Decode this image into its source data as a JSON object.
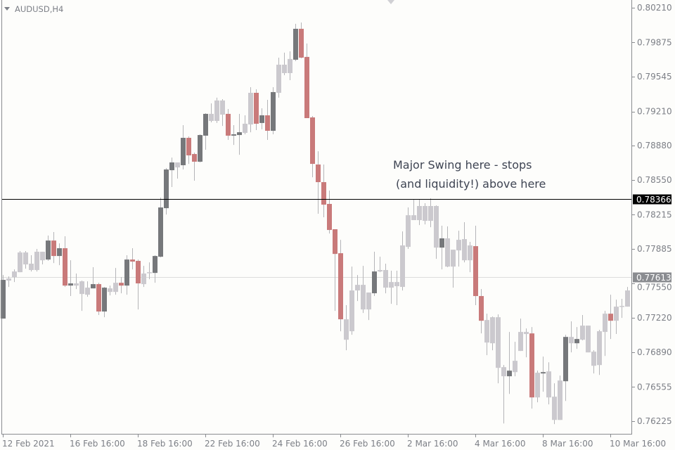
{
  "header": {
    "symbol_label": "AUDUSD,H4"
  },
  "annotation": {
    "line1": "Major Swing here - stops",
    "line2": "(and liquidity!) above here"
  },
  "colors": {
    "background": "#fdfdfb",
    "bull": "#76787b",
    "bear": "#c97a7a",
    "neutral": "#cbc9ce",
    "wick": "#b5b5b8",
    "level_line": "#000000",
    "price_line": "#dcdcdc"
  },
  "chart_data": {
    "type": "candlestick",
    "symbol": "AUDUSD",
    "timeframe": "H4",
    "ylim": [
      0.76225,
      0.8021
    ],
    "y_ticks": [
      "0.80210",
      "0.79875",
      "0.79545",
      "0.79210",
      "0.78880",
      "0.78550",
      "0.78215",
      "0.77885",
      "0.77550",
      "0.77220",
      "0.76890",
      "0.76555",
      "0.76225"
    ],
    "x_ticks": [
      {
        "label": "12 Feb 2021",
        "candle": 0
      },
      {
        "label": "16 Feb 16:00",
        "candle": 12
      },
      {
        "label": "18 Feb 16:00",
        "candle": 24
      },
      {
        "label": "22 Feb 16:00",
        "candle": 36
      },
      {
        "label": "24 Feb 16:00",
        "candle": 48
      },
      {
        "label": "26 Feb 16:00",
        "candle": 60
      },
      {
        "label": "2 Mar 16:00",
        "candle": 72
      },
      {
        "label": "4 Mar 16:00",
        "candle": 84
      },
      {
        "label": "8 Mar 16:00",
        "candle": 96
      },
      {
        "label": "10 Mar 16:00",
        "candle": 108
      }
    ],
    "horizontal_level": {
      "price": 0.78366,
      "label": "0.78366"
    },
    "current_price": {
      "price": 0.77613,
      "label": "0.77613"
    },
    "candle_fields": [
      "open",
      "high",
      "low",
      "close",
      "style"
    ],
    "candles": [
      [
        0.77214,
        0.77634,
        0.77214,
        0.77587,
        "bull"
      ],
      [
        0.7758,
        0.7762,
        0.77519,
        0.776,
        "neutral"
      ],
      [
        0.77614,
        0.77688,
        0.77566,
        0.77668,
        "neutral"
      ],
      [
        0.77661,
        0.77865,
        0.77661,
        0.77851,
        "neutral"
      ],
      [
        0.77851,
        0.77865,
        0.77695,
        0.77736,
        "neutral"
      ],
      [
        0.77743,
        0.77824,
        0.77668,
        0.77682,
        "neutral"
      ],
      [
        0.77682,
        0.77885,
        0.77668,
        0.77858,
        "neutral"
      ],
      [
        0.77858,
        0.77858,
        0.77736,
        0.77776,
        "neutral"
      ],
      [
        0.77783,
        0.78014,
        0.7777,
        0.77966,
        "bull"
      ],
      [
        0.77966,
        0.78048,
        0.77749,
        0.77817,
        "bear"
      ],
      [
        0.77817,
        0.77939,
        0.77729,
        0.77892,
        "bull"
      ],
      [
        0.77892,
        0.78007,
        0.77519,
        0.77532,
        "bear"
      ],
      [
        0.77532,
        0.77776,
        0.77431,
        0.77553,
        "bull"
      ],
      [
        0.77553,
        0.77648,
        0.77498,
        0.77532,
        "neutral"
      ],
      [
        0.77573,
        0.7758,
        0.77288,
        0.77451,
        "neutral"
      ],
      [
        0.77444,
        0.77573,
        0.77424,
        0.77512,
        "neutral"
      ],
      [
        0.77505,
        0.77709,
        0.77505,
        0.77546,
        "bull"
      ],
      [
        0.77546,
        0.77559,
        0.77248,
        0.77282,
        "bear"
      ],
      [
        0.77282,
        0.77519,
        0.77227,
        0.77512,
        "bull"
      ],
      [
        0.77505,
        0.77532,
        0.77437,
        0.77471,
        "neutral"
      ],
      [
        0.77471,
        0.77702,
        0.77444,
        0.77559,
        "neutral"
      ],
      [
        0.77559,
        0.77614,
        0.77458,
        0.77532,
        "bear"
      ],
      [
        0.77532,
        0.77824,
        0.77444,
        0.77783,
        "bull"
      ],
      [
        0.77783,
        0.77892,
        0.77688,
        0.77763,
        "bear"
      ],
      [
        0.7777,
        0.77783,
        0.77302,
        0.77553,
        "bear"
      ],
      [
        0.77546,
        0.77722,
        0.77519,
        0.77648,
        "neutral"
      ],
      [
        0.77654,
        0.77756,
        0.77593,
        0.77661,
        "neutral"
      ],
      [
        0.77654,
        0.77824,
        0.77559,
        0.77817,
        "bull"
      ],
      [
        0.7781,
        0.7838,
        0.77804,
        0.78285,
        "bull"
      ],
      [
        0.78278,
        0.78665,
        0.78217,
        0.78651,
        "bull"
      ],
      [
        0.78644,
        0.78766,
        0.78482,
        0.78719,
        "bull"
      ],
      [
        0.78719,
        0.78719,
        0.78563,
        0.78671,
        "neutral"
      ],
      [
        0.78692,
        0.79078,
        0.78651,
        0.78956,
        "bull"
      ],
      [
        0.78956,
        0.7897,
        0.78705,
        0.78787,
        "bear"
      ],
      [
        0.788,
        0.78814,
        0.78543,
        0.78726,
        "bear"
      ],
      [
        0.78726,
        0.7899,
        0.78719,
        0.78983,
        "bull"
      ],
      [
        0.78977,
        0.79193,
        0.78841,
        0.79187,
        "bull"
      ],
      [
        0.79187,
        0.79288,
        0.79105,
        0.79119,
        "neutral"
      ],
      [
        0.79119,
        0.79343,
        0.79099,
        0.79316,
        "neutral"
      ],
      [
        0.79316,
        0.79329,
        0.79071,
        0.7918,
        "neutral"
      ],
      [
        0.79187,
        0.79234,
        0.78936,
        0.78977,
        "bear"
      ],
      [
        0.78977,
        0.79078,
        0.78888,
        0.7899,
        "bull"
      ],
      [
        0.78983,
        0.79187,
        0.78793,
        0.7901,
        "bull"
      ],
      [
        0.79004,
        0.79173,
        0.7899,
        0.79092,
        "neutral"
      ],
      [
        0.79085,
        0.79444,
        0.7901,
        0.7939,
        "neutral"
      ],
      [
        0.7939,
        0.79424,
        0.79031,
        0.79092,
        "bear"
      ],
      [
        0.79099,
        0.79241,
        0.79038,
        0.79173,
        "bull"
      ],
      [
        0.79173,
        0.79322,
        0.78936,
        0.79024,
        "bear"
      ],
      [
        0.79024,
        0.79444,
        0.7899,
        0.79397,
        "bull"
      ],
      [
        0.7939,
        0.79729,
        0.79343,
        0.79661,
        "neutral"
      ],
      [
        0.79661,
        0.79777,
        0.7956,
        0.7958,
        "neutral"
      ],
      [
        0.7958,
        0.7979,
        0.79512,
        0.79716,
        "neutral"
      ],
      [
        0.79709,
        0.80055,
        0.79695,
        0.80007,
        "bull"
      ],
      [
        0.80007,
        0.80068,
        0.79722,
        0.79729,
        "bear"
      ],
      [
        0.79736,
        0.79865,
        0.79146,
        0.79146,
        "bear"
      ],
      [
        0.79153,
        0.79166,
        0.78576,
        0.78705,
        "bear"
      ],
      [
        0.78699,
        0.78827,
        0.78224,
        0.78529,
        "bear"
      ],
      [
        0.78529,
        0.78699,
        0.7819,
        0.78312,
        "bear"
      ],
      [
        0.78319,
        0.78448,
        0.78034,
        0.78068,
        "bear"
      ],
      [
        0.78075,
        0.78075,
        0.77288,
        0.77837,
        "bear"
      ],
      [
        0.77844,
        0.77973,
        0.77092,
        0.77207,
        "bear"
      ],
      [
        0.77207,
        0.77343,
        0.76909,
        0.7701,
        "neutral"
      ],
      [
        0.77092,
        0.77715,
        0.77058,
        0.77485,
        "neutral"
      ],
      [
        0.77485,
        0.77634,
        0.77383,
        0.77539,
        "neutral"
      ],
      [
        0.77539,
        0.77722,
        0.77268,
        0.77302,
        "neutral"
      ],
      [
        0.77302,
        0.77465,
        0.772,
        0.77465,
        "neutral"
      ],
      [
        0.77458,
        0.77858,
        0.77431,
        0.77668,
        "bull"
      ],
      [
        0.77668,
        0.7781,
        0.77661,
        0.77682,
        "neutral"
      ],
      [
        0.77682,
        0.77743,
        0.77458,
        0.77512,
        "neutral"
      ],
      [
        0.77512,
        0.77675,
        0.77356,
        0.77566,
        "neutral"
      ],
      [
        0.77566,
        0.77675,
        0.77343,
        0.77526,
        "neutral"
      ],
      [
        0.77519,
        0.78054,
        0.77485,
        0.77919,
        "neutral"
      ],
      [
        0.77905,
        0.78285,
        0.77885,
        0.7821,
        "neutral"
      ],
      [
        0.7821,
        0.7836,
        0.78163,
        0.78163,
        "neutral"
      ],
      [
        0.78163,
        0.78366,
        0.78115,
        0.78299,
        "neutral"
      ],
      [
        0.78299,
        0.78326,
        0.78122,
        0.78156,
        "neutral"
      ],
      [
        0.78156,
        0.78373,
        0.78095,
        0.78299,
        "neutral"
      ],
      [
        0.78299,
        0.78305,
        0.7779,
        0.77898,
        "neutral"
      ],
      [
        0.77898,
        0.78109,
        0.77688,
        0.77987,
        "bull"
      ],
      [
        0.77987,
        0.78102,
        0.77709,
        0.77715,
        "neutral"
      ],
      [
        0.77715,
        0.77878,
        0.77512,
        0.77878,
        "neutral"
      ],
      [
        0.77871,
        0.78061,
        0.77715,
        0.77973,
        "neutral"
      ],
      [
        0.7798,
        0.78143,
        0.77756,
        0.77776,
        "neutral"
      ],
      [
        0.77776,
        0.77953,
        0.77661,
        0.77919,
        "neutral"
      ],
      [
        0.77912,
        0.78109,
        0.77343,
        0.77431,
        "bear"
      ],
      [
        0.77431,
        0.77498,
        0.77071,
        0.77193,
        "bear"
      ],
      [
        0.772,
        0.77261,
        0.76861,
        0.76983,
        "neutral"
      ],
      [
        0.76976,
        0.77234,
        0.76909,
        0.77227,
        "neutral"
      ],
      [
        0.77227,
        0.77254,
        0.7659,
        0.76739,
        "neutral"
      ],
      [
        0.76746,
        0.76766,
        0.76203,
        0.76658,
        "neutral"
      ],
      [
        0.76658,
        0.77085,
        0.76488,
        0.76712,
        "bull"
      ],
      [
        0.76698,
        0.7699,
        0.76658,
        0.76807,
        "neutral"
      ],
      [
        0.76902,
        0.77214,
        0.76902,
        0.77085,
        "neutral"
      ],
      [
        0.77085,
        0.77119,
        0.76841,
        0.77065,
        "neutral"
      ],
      [
        0.77071,
        0.77132,
        0.76346,
        0.76454,
        "bear"
      ],
      [
        0.76454,
        0.76712,
        0.76407,
        0.76692,
        "neutral"
      ],
      [
        0.76685,
        0.76848,
        0.76509,
        0.76698,
        "bull"
      ],
      [
        0.76705,
        0.76793,
        0.76387,
        0.76454,
        "neutral"
      ],
      [
        0.76461,
        0.7659,
        0.76197,
        0.76237,
        "neutral"
      ],
      [
        0.76237,
        0.76665,
        0.76237,
        0.76617,
        "neutral"
      ],
      [
        0.7661,
        0.77058,
        0.7642,
        0.77037,
        "bull"
      ],
      [
        0.77037,
        0.77187,
        0.76888,
        0.76976,
        "neutral"
      ],
      [
        0.76976,
        0.77132,
        0.76922,
        0.77017,
        "bull"
      ],
      [
        0.7701,
        0.77248,
        0.77004,
        0.77146,
        "neutral"
      ],
      [
        0.77146,
        0.77146,
        0.76888,
        0.76888,
        "neutral"
      ],
      [
        0.76895,
        0.76909,
        0.76685,
        0.76759,
        "neutral"
      ],
      [
        0.76766,
        0.77105,
        0.76671,
        0.77092,
        "neutral"
      ],
      [
        0.77085,
        0.77288,
        0.76854,
        0.77261,
        "neutral"
      ],
      [
        0.77261,
        0.77444,
        0.77017,
        0.77193,
        "bear"
      ],
      [
        0.77193,
        0.77397,
        0.77065,
        0.77329,
        "neutral"
      ],
      [
        0.77329,
        0.77404,
        0.7722,
        0.77336,
        "neutral"
      ],
      [
        0.77329,
        0.77519,
        0.77329,
        0.77485,
        "neutral"
      ]
    ]
  }
}
